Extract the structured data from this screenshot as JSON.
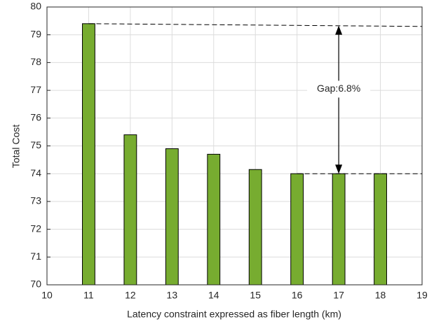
{
  "chart_data": {
    "type": "bar",
    "x": [
      11,
      12,
      13,
      14,
      15,
      16,
      17,
      18
    ],
    "values": [
      79.4,
      75.4,
      74.9,
      74.7,
      74.15,
      74.0,
      74.0,
      74.0
    ],
    "color": "#77ac30",
    "xlabel": "Latency constraint expressed as fiber length (km)",
    "ylabel": "Total Cost",
    "xlim": [
      10,
      19
    ],
    "xticks": [
      10,
      11,
      12,
      13,
      14,
      15,
      16,
      17,
      18,
      19
    ],
    "ylim": [
      70,
      80
    ],
    "yticks": [
      70,
      71,
      72,
      73,
      74,
      75,
      76,
      77,
      78,
      79,
      80
    ],
    "grid": true,
    "reference_lines": [
      {
        "x": [
          11,
          19
        ],
        "y": [
          79.4,
          79.3
        ]
      },
      {
        "x": [
          16,
          19
        ],
        "y": [
          74.0,
          74.0
        ]
      }
    ],
    "gap_arrow": {
      "x": 17,
      "y": [
        79.33,
        74.0
      ],
      "label": "Gap:6.8%"
    }
  }
}
